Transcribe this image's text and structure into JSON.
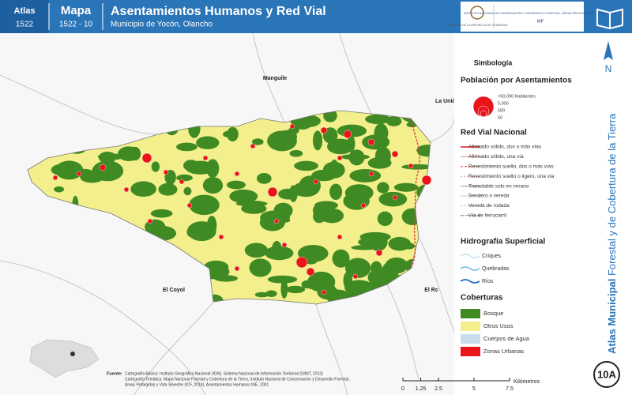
{
  "header": {
    "atlas_label": "Atlas",
    "atlas_number": "1522",
    "map_label": "Mapa",
    "map_number": "1522 - 10",
    "title": "Asentamientos Humanos y Red Vial",
    "subtitle": "Municipio de Yocón, Olancho",
    "logos": [
      "GOBIERNO DE LA REPÚBLICA DE HONDURAS",
      "INSTITUTO NACIONAL DE CONSERVACIÓN Y DESARROLLO FORESTAL, ÁREAS PROTEGIDAS Y VIDA SILVESTRE",
      "ICF"
    ]
  },
  "map": {
    "places": [
      "Manguile",
      "La Unión",
      "El Coyol",
      "El Rc"
    ]
  },
  "legend": {
    "title": "Simbología",
    "population": {
      "title": "Población por Asentamientos",
      "items": [
        "+50,000 Habitantes",
        "5,000",
        "500",
        "50"
      ]
    },
    "roads": {
      "title": "Red Vial Nacional",
      "items": [
        "Afirmado sólido, dos o más vías",
        "Afirmado sólido, una vía",
        "Revestimiento suelto, dos o más vías",
        "Revestimiento suelto o ligero, una vía",
        "Transitable solo en verano",
        "Sendero o vereda",
        "Vereda de rodada",
        "Vía de ferrocarril"
      ]
    },
    "hydro": {
      "title": "Hidrografía Superficial",
      "items": [
        "Criques",
        "Quebradas",
        "Ríos"
      ]
    },
    "cover": {
      "title": "Coberturas",
      "items": [
        "Bosque",
        "Otros Usos",
        "Cuerpos de Agua",
        "Zonas Urbanas"
      ]
    }
  },
  "side": {
    "atlas_bold": "Atlas Municipal",
    "atlas_rest": "Forestal y de Cobertura de la Tierra",
    "north": "N",
    "page": "10A"
  },
  "scale": {
    "ticks": [
      0,
      1.25,
      2.5,
      5,
      7.5
    ],
    "unit": "Kilómetros"
  },
  "source": {
    "label": "Fuente:",
    "lines": [
      "Cartografía Básica: Instituto Geográfico Nacional (IGN), Sistema Nacional de Información Territorial (SINIT, 2013)",
      "Cartografía Temática: Mapa Nacional Forestal y Cobertura de la Tierra, Instituto Nacional de Conservación y Desarrollo Forestal,",
      "Áreas Protegidas y Vida Silvestre (ICF, 2014), Asentamientos Humanos INE, 2001"
    ]
  }
}
